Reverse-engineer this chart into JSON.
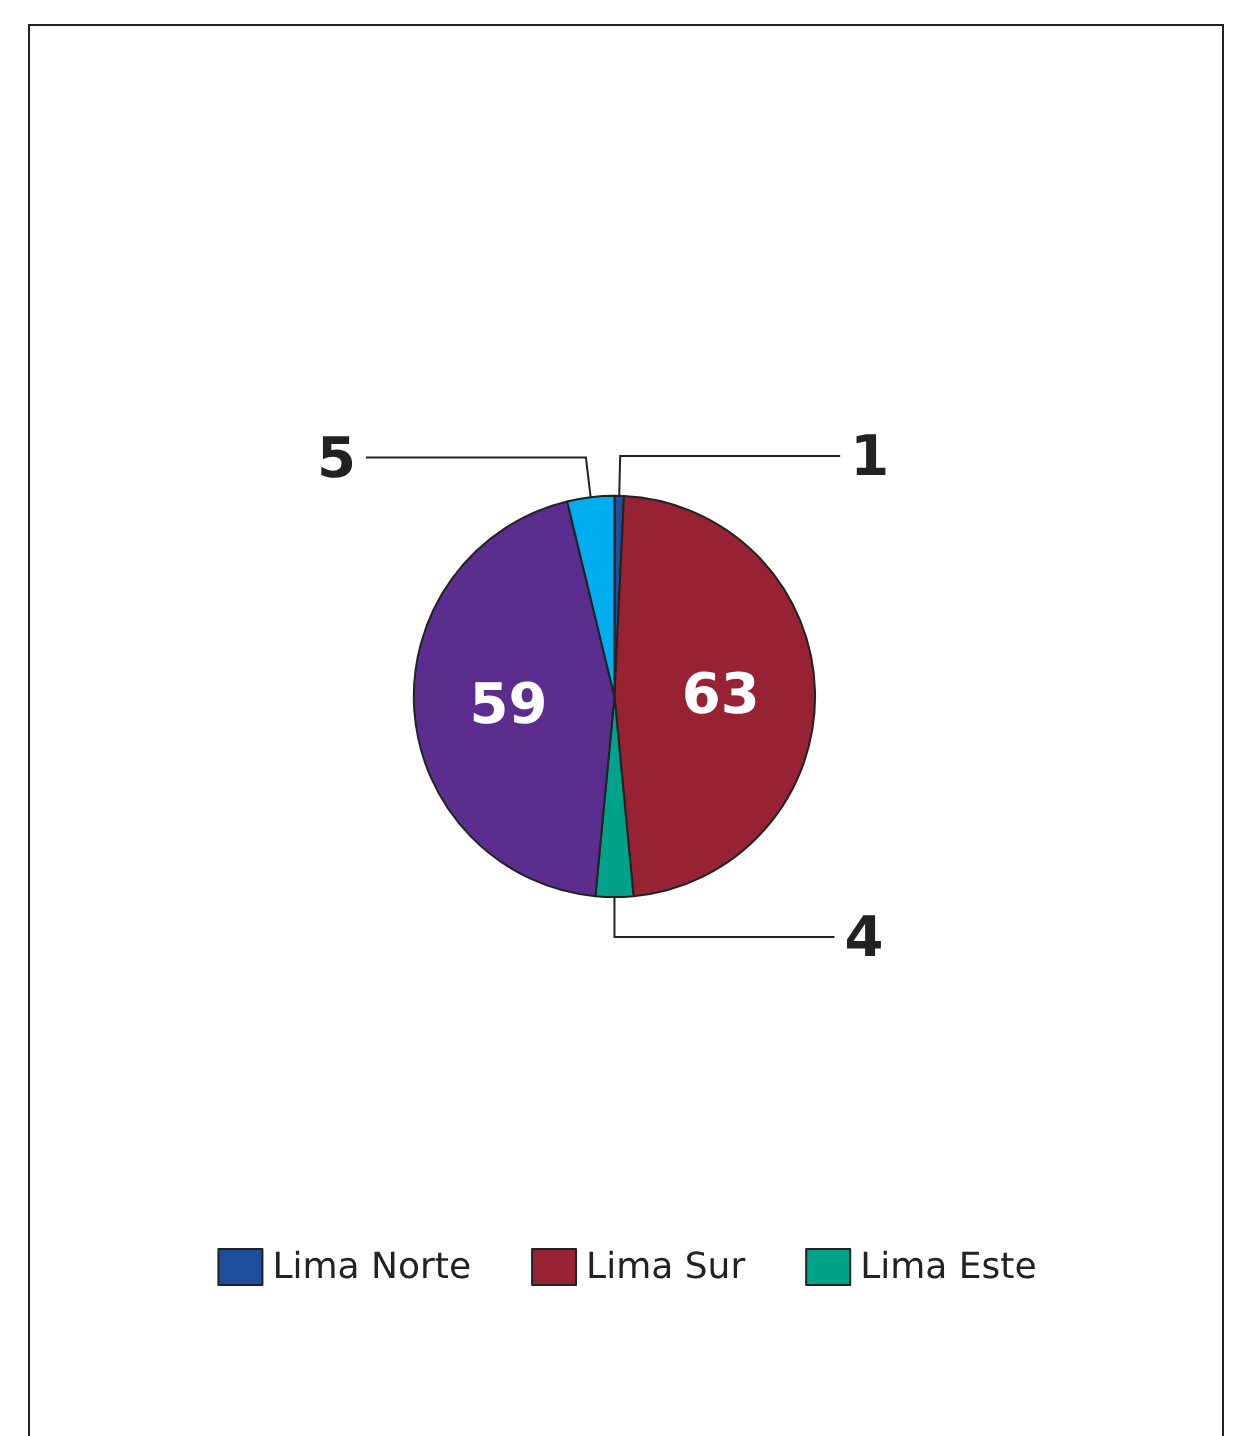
{
  "chart_data": {
    "type": "pie",
    "categories": [
      "Lima Norte",
      "Lima Sur",
      "Lima Este",
      null,
      null
    ],
    "values": [
      1,
      63,
      4,
      59,
      5
    ],
    "colors": [
      "#1f4e9e",
      "#972234",
      "#00a28a",
      "#5b2d8e",
      "#00aeef"
    ],
    "data_labels": true,
    "legend": "bottom"
  }
}
